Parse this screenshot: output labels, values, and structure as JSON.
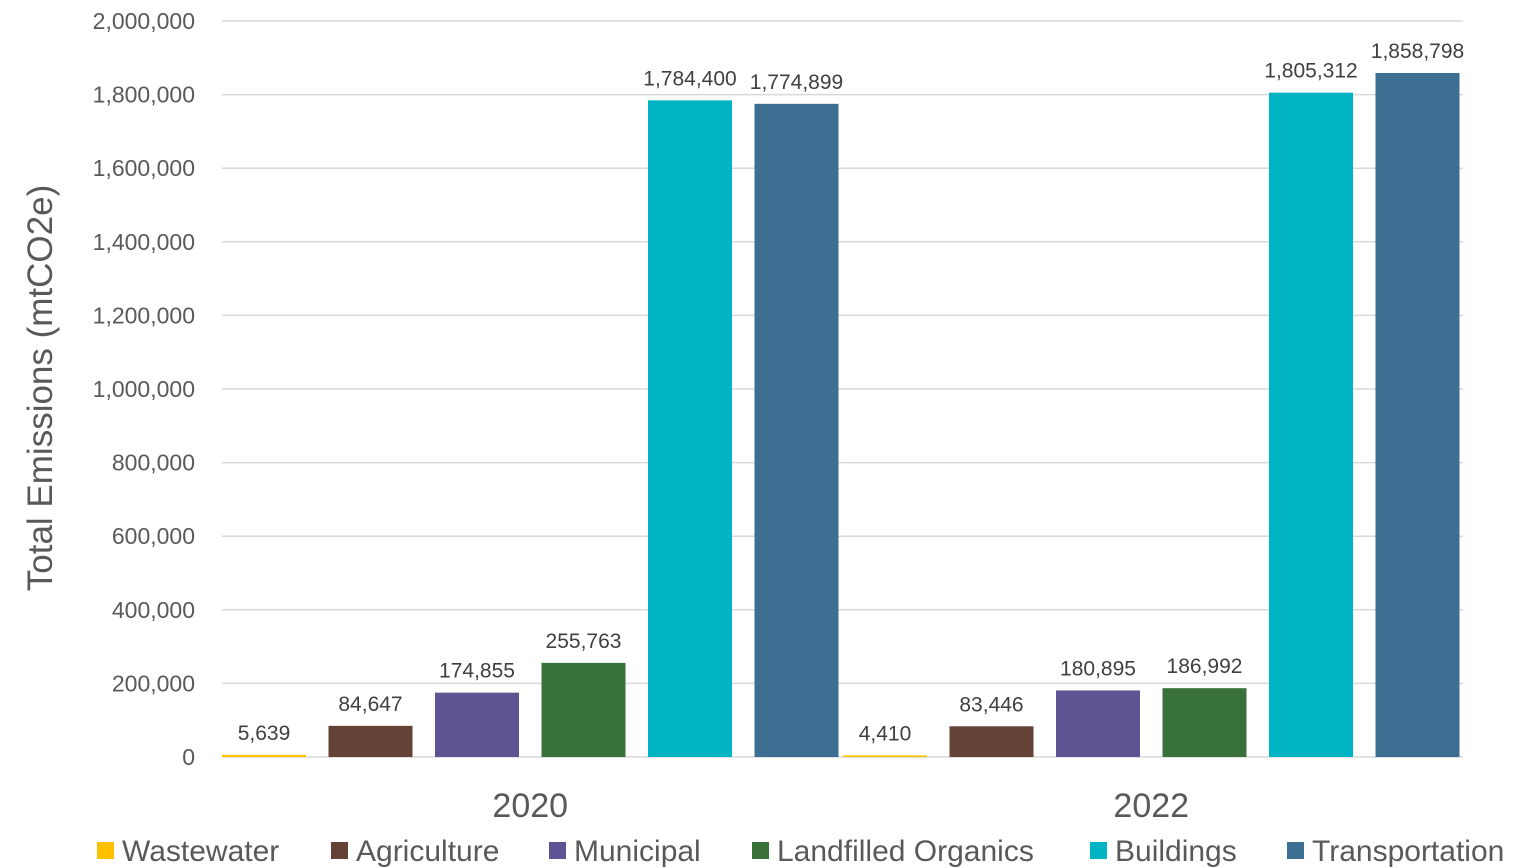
{
  "chart_data": {
    "type": "bar",
    "categories": [
      "2020",
      "2022"
    ],
    "ylabel": "Total Emissions (mtCO2e)",
    "xlabel": "",
    "ylim": [
      0,
      2000000
    ],
    "yticks": [
      0,
      200000,
      400000,
      600000,
      800000,
      1000000,
      1200000,
      1400000,
      1600000,
      1800000,
      2000000
    ],
    "ytick_labels": [
      "0",
      "200,000",
      "400,000",
      "600,000",
      "800,000",
      "1,000,000",
      "1,200,000",
      "1,400,000",
      "1,600,000",
      "1,800,000",
      "2,000,000"
    ],
    "grid": true,
    "legend_position": "bottom",
    "series": [
      {
        "name": "Wastewater",
        "color": "#FFC000",
        "values": [
          5639,
          4410
        ],
        "labels": [
          "5,639",
          "4,410"
        ]
      },
      {
        "name": "Agriculture",
        "color": "#654236",
        "values": [
          84647,
          83446
        ],
        "labels": [
          "84,647",
          "83,446"
        ]
      },
      {
        "name": "Municipal",
        "color": "#5C5493",
        "values": [
          174855,
          180895
        ],
        "labels": [
          "174,855",
          "180,895"
        ]
      },
      {
        "name": "Landfilled Organics",
        "color": "#38723A",
        "values": [
          255763,
          186992
        ],
        "labels": [
          "255,763",
          "186,992"
        ]
      },
      {
        "name": "Buildings",
        "color": "#00B4C3",
        "values": [
          1784400,
          1805312
        ],
        "labels": [
          "1,784,400",
          "1,805,312"
        ]
      },
      {
        "name": "Transportation",
        "color": "#3D6F92",
        "values": [
          1774899,
          1858798
        ],
        "labels": [
          "1,774,899",
          "1,858,798"
        ]
      }
    ]
  }
}
